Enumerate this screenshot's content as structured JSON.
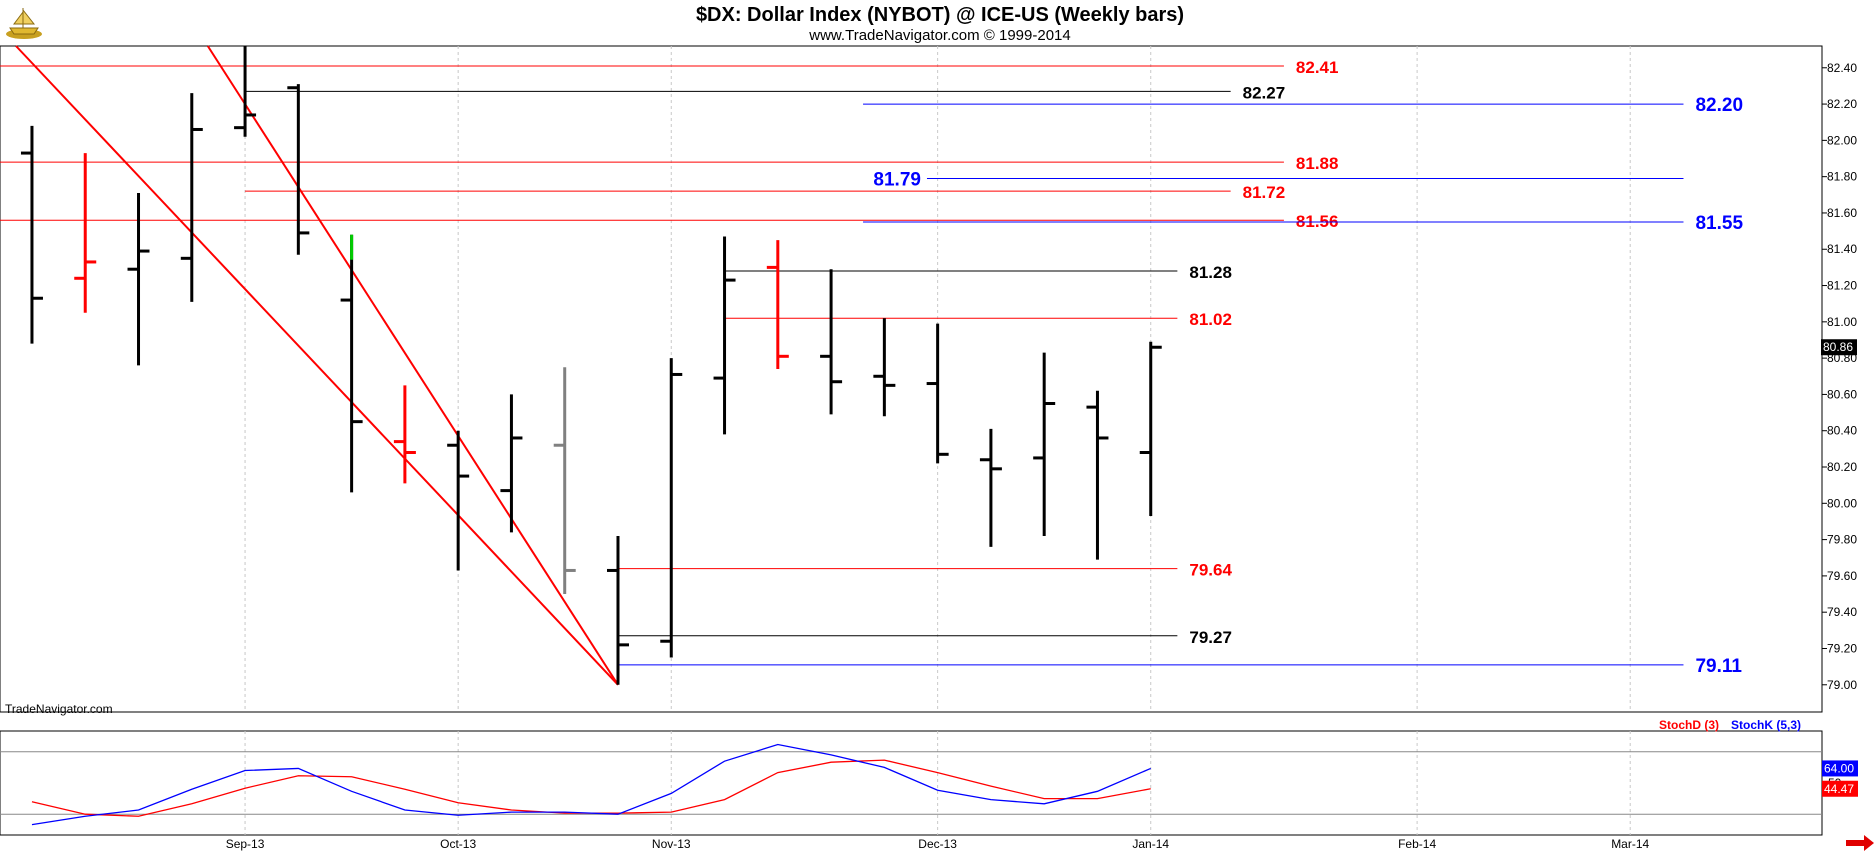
{
  "header": {
    "title": "$DX:  Dollar Index (NYBOT) @ ICE-US  (Weekly bars)",
    "subtitle": "www.TradeNavigator.com © 1999-2014",
    "watermark": "TradeNavigator.com",
    "logo_icon": "ship-logo-icon",
    "nav_arrow_icon": "right-arrow-icon"
  },
  "chart_data": [
    {
      "type": "ohlc",
      "title": "$DX:  Dollar Index (NYBOT) @ ICE-US  (Weekly bars)",
      "y_ticks": [
        "79.00",
        "79.20",
        "79.40",
        "79.60",
        "79.80",
        "80.00",
        "80.20",
        "80.40",
        "80.60",
        "80.80",
        "81.00",
        "81.20",
        "81.40",
        "81.60",
        "81.80",
        "82.00",
        "82.20",
        "82.40"
      ],
      "ylim": [
        78.85,
        82.52
      ],
      "x_ticks": [
        {
          "label": "Sep-13",
          "week": 4.0
        },
        {
          "label": "Oct-13",
          "week": 8.0
        },
        {
          "label": "Nov-13",
          "week": 12.0
        },
        {
          "label": "Dec-13",
          "week": 17.0
        },
        {
          "label": "Jan-14",
          "week": 21.0
        },
        {
          "label": "Feb-14",
          "week": 26.0
        },
        {
          "label": "Mar-14",
          "week": 30.0
        }
      ],
      "xlim": [
        -0.6,
        33.6
      ],
      "last_price": "80.86",
      "colors": {
        "up": "#000000",
        "down_key": "#ff0000",
        "neutral": "#808080"
      },
      "bars": [
        {
          "o": 81.93,
          "h": 82.08,
          "l": 80.88,
          "c": 81.13,
          "color": "#000000"
        },
        {
          "o": 81.24,
          "h": 81.93,
          "l": 81.05,
          "c": 81.33,
          "color": "#ff0000"
        },
        {
          "o": 81.29,
          "h": 81.71,
          "l": 80.76,
          "c": 81.39,
          "color": "#000000"
        },
        {
          "o": 81.35,
          "h": 82.26,
          "l": 81.11,
          "c": 82.06,
          "color": "#000000"
        },
        {
          "o": 82.07,
          "h": 82.52,
          "l": 82.02,
          "c": 82.14,
          "color": "#000000"
        },
        {
          "o": 82.29,
          "h": 82.31,
          "l": 81.37,
          "c": 81.49,
          "color": "#000000"
        },
        {
          "o": 81.12,
          "h": 81.48,
          "l": 80.06,
          "c": 80.45,
          "color": "#000000",
          "high_color": "#00cc00"
        },
        {
          "o": 80.34,
          "h": 80.65,
          "l": 80.11,
          "c": 80.28,
          "color": "#ff0000"
        },
        {
          "o": 80.32,
          "h": 80.4,
          "l": 79.63,
          "c": 80.15,
          "color": "#000000"
        },
        {
          "o": 80.07,
          "h": 80.6,
          "l": 79.84,
          "c": 80.36,
          "color": "#000000"
        },
        {
          "o": 80.32,
          "h": 80.75,
          "l": 79.5,
          "c": 79.63,
          "color": "#808080"
        },
        {
          "o": 79.63,
          "h": 79.82,
          "l": 79.0,
          "c": 79.22,
          "color": "#000000"
        },
        {
          "o": 79.24,
          "h": 80.8,
          "l": 79.15,
          "c": 80.71,
          "color": "#000000"
        },
        {
          "o": 80.69,
          "h": 81.47,
          "l": 80.38,
          "c": 81.23,
          "color": "#000000"
        },
        {
          "o": 81.3,
          "h": 81.45,
          "l": 80.74,
          "c": 80.81,
          "color": "#ff0000"
        },
        {
          "o": 80.81,
          "h": 81.29,
          "l": 80.49,
          "c": 80.67,
          "color": "#000000"
        },
        {
          "o": 80.7,
          "h": 81.02,
          "l": 80.48,
          "c": 80.65,
          "color": "#000000"
        },
        {
          "o": 80.66,
          "h": 80.99,
          "l": 80.22,
          "c": 80.27,
          "color": "#000000"
        },
        {
          "o": 80.24,
          "h": 80.41,
          "l": 79.76,
          "c": 80.19,
          "color": "#000000"
        },
        {
          "o": 80.25,
          "h": 80.83,
          "l": 79.82,
          "c": 80.55,
          "color": "#000000"
        },
        {
          "o": 80.53,
          "h": 80.62,
          "l": 79.69,
          "c": 80.36,
          "color": "#000000"
        },
        {
          "o": 80.28,
          "h": 80.89,
          "l": 79.93,
          "c": 80.86,
          "color": "#000000"
        }
      ],
      "trendlines": [
        {
          "from": {
            "week": -0.3,
            "price": 82.52
          },
          "to": {
            "week": 11.0,
            "price": 79.0
          },
          "color": "#ff0000"
        },
        {
          "from": {
            "week": 3.3,
            "price": 82.52
          },
          "to": {
            "week": 11.0,
            "price": 79.0
          },
          "color": "#ff0000"
        }
      ],
      "levels": [
        {
          "label": "82.41",
          "price": 82.41,
          "from_week": -0.6,
          "to_week": 23.5,
          "color": "#ff0000",
          "label_side": "right",
          "size": "normal"
        },
        {
          "label": "82.27",
          "price": 82.27,
          "from_week": 4.0,
          "to_week": 22.5,
          "color": "#000000",
          "label_side": "right",
          "size": "normal"
        },
        {
          "label": "82.20",
          "price": 82.2,
          "from_week": 15.6,
          "to_week": 31.0,
          "color": "#0000ff",
          "label_side": "right",
          "size": "big"
        },
        {
          "label": "81.88",
          "price": 81.88,
          "from_week": -0.6,
          "to_week": 23.5,
          "color": "#ff0000",
          "label_side": "right",
          "size": "normal"
        },
        {
          "label": "81.79",
          "price": 81.79,
          "from_week": 16.8,
          "to_week": 31.0,
          "color": "#0000ff",
          "label_side": "left",
          "size": "big"
        },
        {
          "label": "81.72",
          "price": 81.72,
          "from_week": 4.0,
          "to_week": 22.5,
          "color": "#ff0000",
          "label_side": "right",
          "size": "normal"
        },
        {
          "label": "81.56",
          "price": 81.56,
          "from_week": -0.6,
          "to_week": 23.5,
          "color": "#ff0000",
          "label_side": "right",
          "size": "normal"
        },
        {
          "label": "81.55",
          "price": 81.55,
          "from_week": 15.6,
          "to_week": 31.0,
          "color": "#0000ff",
          "label_side": "right",
          "size": "big"
        },
        {
          "label": "81.28",
          "price": 81.28,
          "from_week": 13.0,
          "to_week": 21.5,
          "color": "#000000",
          "label_side": "right",
          "size": "normal"
        },
        {
          "label": "81.02",
          "price": 81.02,
          "from_week": 13.0,
          "to_week": 21.5,
          "color": "#ff0000",
          "label_side": "right",
          "size": "normal"
        },
        {
          "label": "79.64",
          "price": 79.64,
          "from_week": 11.0,
          "to_week": 21.5,
          "color": "#ff0000",
          "label_side": "right",
          "size": "normal"
        },
        {
          "label": "79.27",
          "price": 79.27,
          "from_week": 11.0,
          "to_week": 21.5,
          "color": "#000000",
          "label_side": "right",
          "size": "normal"
        },
        {
          "label": "79.11",
          "price": 79.11,
          "from_week": 11.0,
          "to_week": 31.0,
          "color": "#0000ff",
          "label_side": "right",
          "size": "big"
        }
      ]
    },
    {
      "type": "line",
      "title": "",
      "ylim": [
        0,
        100
      ],
      "legend": [
        "StochD (3)",
        "StochK (5,3)"
      ],
      "legend_position": "top-right",
      "guide_lines": [
        20,
        80
      ],
      "tick_label_partial": "50",
      "series": [
        {
          "name": "StochD (3)",
          "color": "#ff0000",
          "last_label": "44.47",
          "values": [
            32,
            20,
            18,
            30,
            45,
            57,
            56,
            44,
            31,
            24,
            21,
            21,
            22,
            34,
            60,
            70,
            72,
            60,
            47,
            35,
            35,
            44.47
          ]
        },
        {
          "name": "StochK (5,3)",
          "color": "#0000ff",
          "last_label": "64.00",
          "values": [
            10,
            18,
            24,
            44,
            62,
            64,
            42,
            24,
            19,
            22,
            22,
            20,
            40,
            71,
            87,
            77,
            65,
            43,
            34,
            30,
            42,
            64.0
          ]
        }
      ]
    }
  ]
}
